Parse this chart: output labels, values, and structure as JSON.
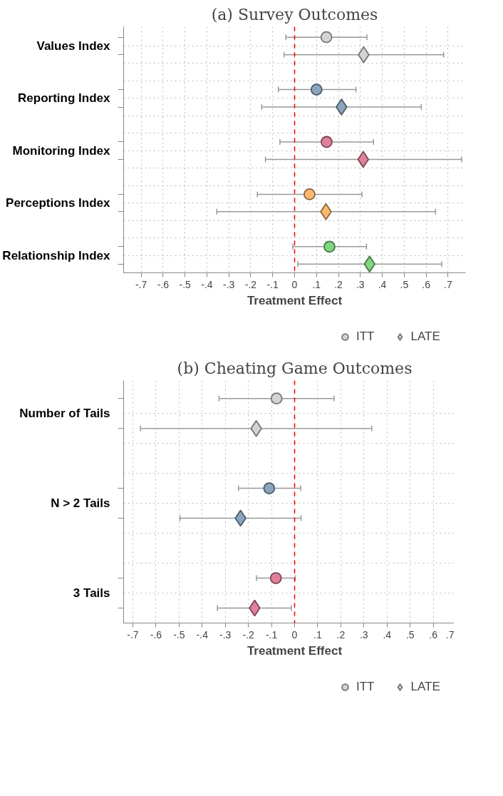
{
  "chart_data": [
    {
      "type": "scatter",
      "orientation": "horizontal",
      "title": "(a) Survey Outcomes",
      "xlabel": "Treatment Effect",
      "categories": [
        "Values Index",
        "Reporting Index",
        "Monitoring Index",
        "Perceptions Index",
        "Relationship Index"
      ],
      "series": [
        {
          "name": "ITT",
          "marker": "circle",
          "color": "#d3d3d3",
          "colors": [
            "#d3d3d3",
            "#8aa5bd",
            "#e0809a",
            "#fbb870",
            "#7fd67f"
          ],
          "values": [
            0.145,
            0.1,
            0.146,
            0.068,
            0.159
          ],
          "errors": [
            [
              -0.04,
              0.33
            ],
            [
              -0.074,
              0.28
            ],
            [
              -0.067,
              0.36
            ],
            [
              -0.17,
              0.307
            ],
            [
              -0.008,
              0.328
            ]
          ]
        },
        {
          "name": "LATE",
          "marker": "diamond",
          "color": "#d3d3d3",
          "colors": [
            "#d3d3d3",
            "#8aa5bd",
            "#e0809a",
            "#fbb870",
            "#7fd67f"
          ],
          "values": [
            0.315,
            0.214,
            0.313,
            0.143,
            0.342
          ],
          "errors": [
            [
              -0.048,
              0.68
            ],
            [
              -0.15,
              0.578
            ],
            [
              -0.133,
              0.762
            ],
            [
              -0.355,
              0.643
            ],
            [
              0.015,
              0.671
            ]
          ]
        }
      ],
      "xlim": [
        -0.78,
        0.78
      ],
      "xticks": [
        {
          "value": -0.7,
          "label": "-.7"
        },
        {
          "value": -0.6,
          "label": "-.6"
        },
        {
          "value": -0.5,
          "label": "-.5"
        },
        {
          "value": -0.4,
          "label": "-.4"
        },
        {
          "value": -0.3,
          "label": "-.3"
        },
        {
          "value": -0.2,
          "label": "-.2"
        },
        {
          "value": -0.1,
          "label": "-.1"
        },
        0,
        {
          "value": 0.1,
          "label": ".1"
        },
        {
          "value": 0.2,
          "label": ".2"
        },
        {
          "value": 0.3,
          "label": ".3"
        },
        {
          "value": 0.4,
          "label": ".4"
        },
        {
          "value": 0.5,
          "label": ".5"
        },
        {
          "value": 0.6,
          "label": ".6"
        },
        {
          "value": 0.7,
          "label": ".7"
        }
      ],
      "ref_lines": [
        {
          "axis": "x",
          "value": 0,
          "label": null,
          "color": "#ff0000",
          "line_style": "dashed"
        }
      ],
      "grid": true,
      "legend": "bottom"
    },
    {
      "type": "scatter",
      "orientation": "horizontal",
      "title": "(b) Cheating Game Outcomes",
      "xlabel": "Treatment Effect",
      "categories": [
        "Number of Tails",
        "N > 2 Tails",
        "3 Tails"
      ],
      "series": [
        {
          "name": "ITT",
          "marker": "circle",
          "color": "#d3d3d3",
          "colors": [
            "#d3d3d3",
            "#8aa5bd",
            "#e0809a"
          ],
          "values": [
            -0.078,
            -0.11,
            -0.081
          ],
          "errors": [
            [
              -0.327,
              0.171
            ],
            [
              -0.243,
              0.026
            ],
            [
              -0.165,
              0.003
            ]
          ]
        },
        {
          "name": "LATE",
          "marker": "diamond",
          "color": "#d3d3d3",
          "colors": [
            "#d3d3d3",
            "#8aa5bd",
            "#e0809a"
          ],
          "values": [
            -0.166,
            -0.234,
            -0.173
          ],
          "errors": [
            [
              -0.667,
              0.334
            ],
            [
              -0.496,
              0.028
            ],
            [
              -0.334,
              -0.014
            ]
          ]
        }
      ],
      "xlim": [
        -0.74,
        0.74
      ],
      "xticks": [
        {
          "value": -0.7,
          "label": "-.7"
        },
        {
          "value": -0.6,
          "label": "-.6"
        },
        {
          "value": -0.5,
          "label": "-.5"
        },
        {
          "value": -0.4,
          "label": "-.4"
        },
        {
          "value": -0.3,
          "label": "-.3"
        },
        {
          "value": -0.2,
          "label": "-.2"
        },
        {
          "value": -0.1,
          "label": "-.1"
        },
        0,
        {
          "value": 0.1,
          "label": ".1"
        },
        {
          "value": 0.2,
          "label": ".2"
        },
        {
          "value": 0.3,
          "label": ".3"
        },
        {
          "value": 0.4,
          "label": ".4"
        },
        {
          "value": 0.5,
          "label": ".5"
        },
        {
          "value": 0.6,
          "label": ".6"
        },
        {
          "value": 0.7,
          "label": ".7"
        }
      ],
      "ref_lines": [
        {
          "axis": "x",
          "value": 0,
          "label": null,
          "color": "#ff0000",
          "line_style": "dashed"
        }
      ],
      "grid": true,
      "legend": "bottom"
    }
  ]
}
